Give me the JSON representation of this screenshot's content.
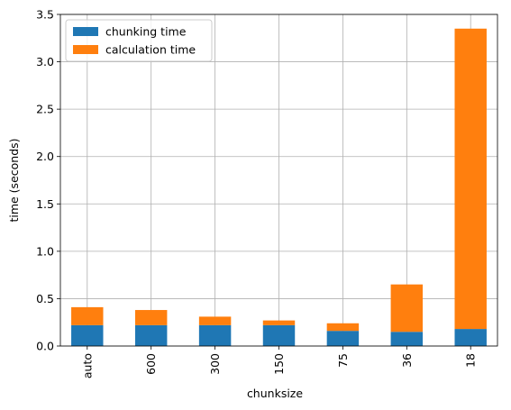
{
  "chart_data": {
    "type": "stacked_bar",
    "xlabel": "chunksize",
    "ylabel": "time (seconds)",
    "categories": [
      "auto",
      "600",
      "300",
      "150",
      "75",
      "36",
      "18"
    ],
    "series": [
      {
        "name": "chunking time",
        "color": "#1f77b4",
        "values": [
          0.22,
          0.22,
          0.22,
          0.22,
          0.16,
          0.15,
          0.18
        ]
      },
      {
        "name": "calculation time",
        "color": "#ff7f0e",
        "values": [
          0.19,
          0.16,
          0.09,
          0.05,
          0.08,
          0.5,
          3.17
        ]
      }
    ],
    "ylim": [
      0,
      3.5
    ],
    "yticks": [
      {
        "value": 0,
        "label": "0.0"
      },
      0.5,
      {
        "value": 1,
        "label": "1.0"
      },
      1.5,
      {
        "value": 2,
        "label": "2.0"
      },
      2.5,
      {
        "value": 3,
        "label": "3.0"
      },
      3.5
    ],
    "grid": true,
    "legend": "upper-left"
  }
}
